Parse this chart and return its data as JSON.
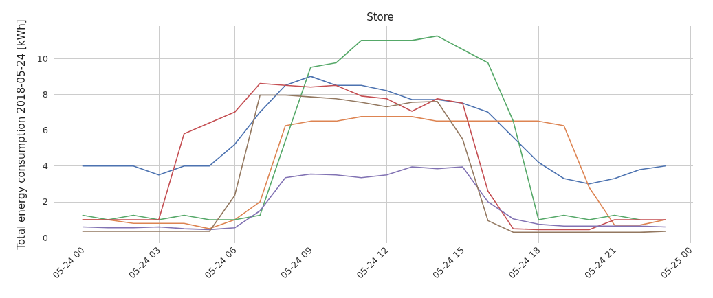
{
  "chart_data": {
    "type": "line",
    "title": "Store",
    "ylabel": "Total energy consumption 2018-05-24 [kWh]",
    "x": [
      "2018-05-24T00:00",
      "2018-05-24T01:00",
      "2018-05-24T02:00",
      "2018-05-24T03:00",
      "2018-05-24T04:00",
      "2018-05-24T05:00",
      "2018-05-24T06:00",
      "2018-05-24T07:00",
      "2018-05-24T08:00",
      "2018-05-24T09:00",
      "2018-05-24T10:00",
      "2018-05-24T11:00",
      "2018-05-24T12:00",
      "2018-05-24T13:00",
      "2018-05-24T14:00",
      "2018-05-24T15:00",
      "2018-05-24T16:00",
      "2018-05-24T17:00",
      "2018-05-24T18:00",
      "2018-05-24T19:00",
      "2018-05-24T20:00",
      "2018-05-24T21:00",
      "2018-05-24T22:00",
      "2018-05-24T23:00"
    ],
    "series": [
      {
        "color": "#4c72b0",
        "values": [
          4,
          4,
          4,
          3.5,
          4,
          4,
          5.2,
          7,
          8.5,
          9,
          8.5,
          8.5,
          8.2,
          7.7,
          7.7,
          7.5,
          7,
          5.6,
          4.2,
          3.3,
          3,
          3.3,
          3.8,
          4
        ]
      },
      {
        "color": "#dd8452",
        "values": [
          1,
          1,
          0.8,
          0.8,
          0.8,
          0.5,
          1,
          2,
          6.25,
          6.5,
          6.5,
          6.75,
          6.75,
          6.75,
          6.5,
          6.5,
          6.5,
          6.5,
          6.5,
          6.25,
          2.8,
          0.7,
          0.7,
          1
        ]
      },
      {
        "color": "#55a868",
        "values": [
          1.25,
          1,
          1.25,
          1,
          1.25,
          1,
          1,
          1.25,
          5.4,
          9.5,
          9.75,
          11,
          11,
          11,
          11.25,
          10.5,
          9.75,
          6.5,
          1,
          1.25,
          1,
          1.25,
          1,
          null
        ]
      },
      {
        "color": "#c44e52",
        "values": [
          1,
          1,
          1,
          1,
          5.8,
          6.4,
          7,
          8.6,
          8.5,
          8.4,
          8.5,
          7.9,
          7.75,
          7.05,
          7.75,
          7.5,
          2.6,
          0.5,
          0.45,
          0.45,
          0.45,
          1,
          1,
          1
        ]
      },
      {
        "color": "#8172b3",
        "values": [
          0.6,
          0.55,
          0.55,
          0.6,
          0.5,
          0.45,
          0.55,
          1.5,
          3.35,
          3.55,
          3.5,
          3.35,
          3.5,
          3.95,
          3.85,
          3.95,
          2,
          1.05,
          0.75,
          0.65,
          0.65,
          0.65,
          0.65,
          0.6
        ]
      },
      {
        "color": "#937860",
        "values": [
          0.35,
          0.35,
          0.35,
          0.35,
          0.35,
          0.35,
          2.35,
          7.95,
          7.95,
          7.85,
          7.75,
          7.55,
          7.3,
          7.55,
          7.6,
          5.5,
          0.95,
          0.3,
          0.3,
          0.3,
          0.3,
          0.3,
          0.3,
          0.35
        ]
      }
    ],
    "xlim": [
      "2018-05-23T22:51",
      "2018-05-25T00:06"
    ],
    "xticks": [
      {
        "value": "2018-05-24T00:00",
        "label": "05-24 00"
      },
      {
        "value": "2018-05-24T03:00",
        "label": "05-24 03"
      },
      {
        "value": "2018-05-24T06:00",
        "label": "05-24 06"
      },
      {
        "value": "2018-05-24T09:00",
        "label": "05-24 09"
      },
      {
        "value": "2018-05-24T12:00",
        "label": "05-24 12"
      },
      {
        "value": "2018-05-24T15:00",
        "label": "05-24 15"
      },
      {
        "value": "2018-05-24T18:00",
        "label": "05-24 18"
      },
      {
        "value": "2018-05-24T21:00",
        "label": "05-24 21"
      },
      {
        "value": "2018-05-25T00:00",
        "label": "05-25 00"
      }
    ],
    "ylim": [
      -0.3,
      11.8
    ],
    "yticks": [
      0,
      2,
      4,
      6,
      8,
      10
    ],
    "grid": true,
    "marker": "none",
    "line_style": "solid"
  }
}
